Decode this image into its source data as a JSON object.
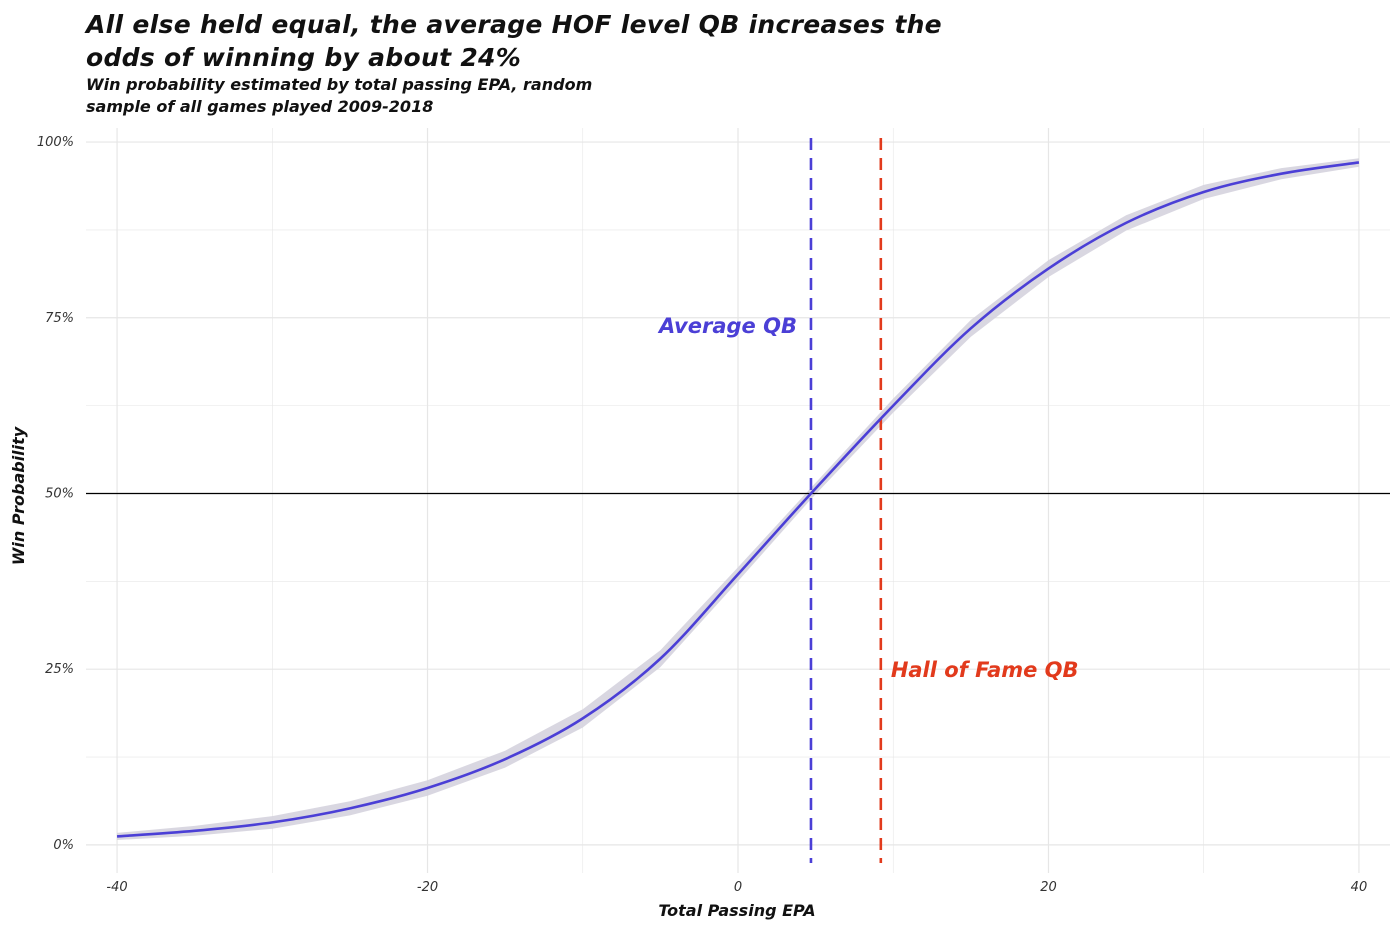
{
  "chart_data": {
    "type": "line",
    "title": "All else held equal, the average HOF level QB increases the odds of winning by about 24%",
    "subtitle": "Win probability estimated by total passing EPA, random sample of all games played 2009-2018",
    "xlabel": "Total Passing EPA",
    "ylabel": "Win Probability",
    "xlim": [
      -42,
      42
    ],
    "ylim": [
      -0.04,
      1.02
    ],
    "x_ticks": [
      -40,
      -20,
      0,
      20,
      40
    ],
    "x_tick_labels": [
      "-40",
      "-20",
      "0",
      "20",
      "40"
    ],
    "y_ticks": [
      0,
      0.25,
      0.5,
      0.75,
      1.0
    ],
    "y_tick_labels": [
      "0%",
      "25%",
      "50%",
      "75%",
      "100%"
    ],
    "grid": true,
    "series": [
      {
        "x": [
          -40,
          -35,
          -30,
          -25,
          -20,
          -15,
          -10,
          -5,
          0,
          4.7,
          10,
          15,
          20,
          25,
          30,
          35,
          40
        ],
        "y": [
          0.012,
          0.02,
          0.032,
          0.052,
          0.081,
          0.122,
          0.18,
          0.265,
          0.385,
          0.5,
          0.625,
          0.735,
          0.82,
          0.885,
          0.929,
          0.955,
          0.971
        ],
        "ci_width": [
          0.005,
          0.007,
          0.009,
          0.01,
          0.011,
          0.012,
          0.013,
          0.012,
          0.01,
          0.008,
          0.01,
          0.012,
          0.012,
          0.011,
          0.01,
          0.008,
          0.006
        ],
        "color": "#4b3fd6"
      }
    ],
    "reference_lines": [
      {
        "orientation": "horizontal",
        "value": 0.5,
        "color": "#000000",
        "style": "solid"
      },
      {
        "orientation": "vertical",
        "value": 4.7,
        "color": "#4b3fd6",
        "style": "dashed",
        "label": "Average QB"
      },
      {
        "orientation": "vertical",
        "value": 9.2,
        "color": "#e23a1c",
        "style": "dashed",
        "label": "Hall of Fame QB"
      }
    ],
    "colors": {
      "line": "#4b3fd6",
      "ribbon": "#d2d0dc",
      "average_qb": "#4b3fd6",
      "hof_qb": "#e23a1c",
      "grid": "#e6e6e6"
    }
  }
}
